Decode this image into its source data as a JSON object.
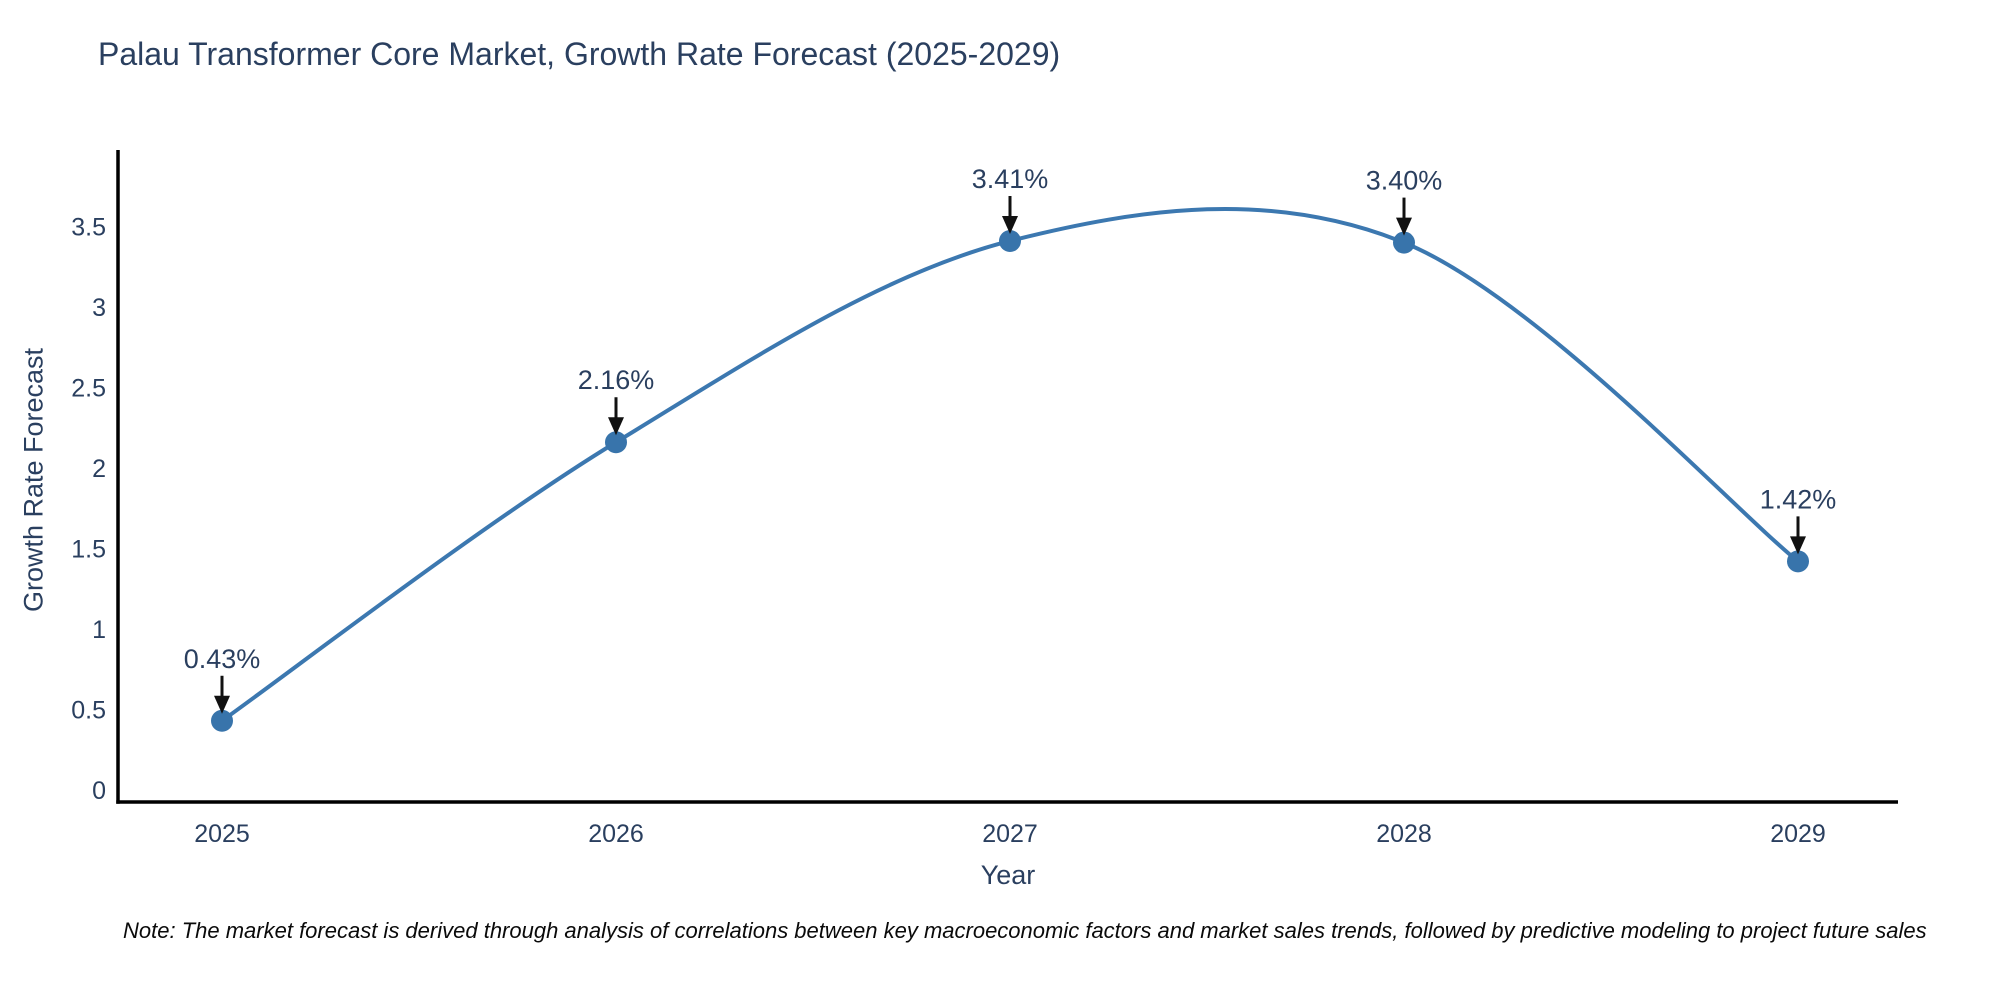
{
  "title": "Palau Transformer Core Market, Growth Rate Forecast (2025-2029)",
  "note": "Note: The market forecast is derived through analysis of correlations between key macroeconomic factors and market sales trends, followed by predictive modeling to project future sales",
  "chart_data": {
    "type": "line",
    "title": "Palau Transformer Core Market, Growth Rate Forecast (2025-2029)",
    "xlabel": "Year",
    "ylabel": "Growth Rate Forecast",
    "categories": [
      "2025",
      "2026",
      "2027",
      "2028",
      "2029"
    ],
    "values": [
      0.43,
      2.16,
      3.41,
      3.4,
      1.42
    ],
    "point_labels": [
      "0.43%",
      "2.16%",
      "3.41%",
      "3.40%",
      "1.42%"
    ],
    "y_ticks": [
      "0",
      "0.5",
      "1",
      "1.5",
      "2",
      "2.5",
      "3",
      "3.5"
    ],
    "y_tick_values": [
      0,
      0.5,
      1,
      1.5,
      2,
      2.5,
      3,
      3.5
    ],
    "ylim": [
      -0.08,
      4.0
    ],
    "grid": false,
    "legend_position": "none",
    "smooth": true,
    "colors": {
      "line": "#3c78b0",
      "marker": "#3874ab",
      "axis": "#000000",
      "text": "#2a3f5f",
      "annotation_arrow": "#111111",
      "note_text": "#0a0a0a",
      "background": "#ffffff"
    }
  }
}
